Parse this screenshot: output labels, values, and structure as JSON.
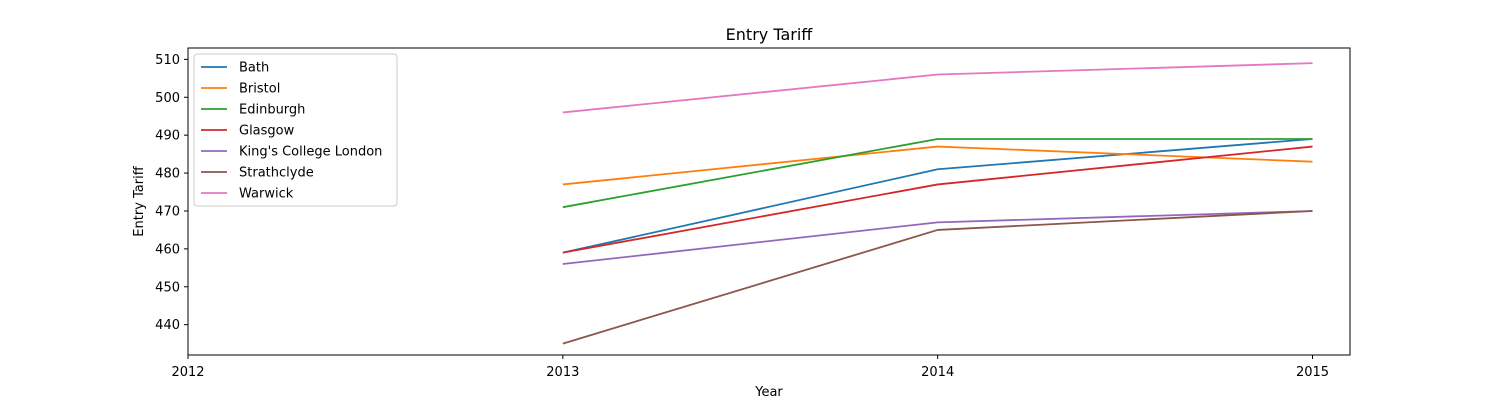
{
  "chart_data": {
    "type": "line",
    "title": "Entry Tariff",
    "xlabel": "Year",
    "ylabel": "Entry Tariff",
    "x": [
      2013,
      2014,
      2015
    ],
    "xlim": [
      2012,
      2015.1
    ],
    "ylim": [
      432,
      513
    ],
    "xticks": [
      "2012",
      "2013",
      "2014",
      "2015"
    ],
    "yticks": [
      "440",
      "450",
      "460",
      "470",
      "480",
      "490",
      "500",
      "510"
    ],
    "grid": false,
    "legend_position": "top-left",
    "series": [
      {
        "name": "Bath",
        "color": "#1f77b4",
        "values": [
          459,
          481,
          489
        ]
      },
      {
        "name": "Bristol",
        "color": "#ff7f0e",
        "values": [
          477,
          487,
          483
        ]
      },
      {
        "name": "Edinburgh",
        "color": "#2ca02c",
        "values": [
          471,
          489,
          489
        ]
      },
      {
        "name": "Glasgow",
        "color": "#d62728",
        "values": [
          459,
          477,
          487
        ]
      },
      {
        "name": "King's College London",
        "color": "#9467bd",
        "values": [
          456,
          467,
          470
        ]
      },
      {
        "name": "Strathclyde",
        "color": "#8c564b",
        "values": [
          435,
          465,
          470
        ]
      },
      {
        "name": "Warwick",
        "color": "#e377c2",
        "values": [
          496,
          506,
          509
        ]
      }
    ]
  }
}
